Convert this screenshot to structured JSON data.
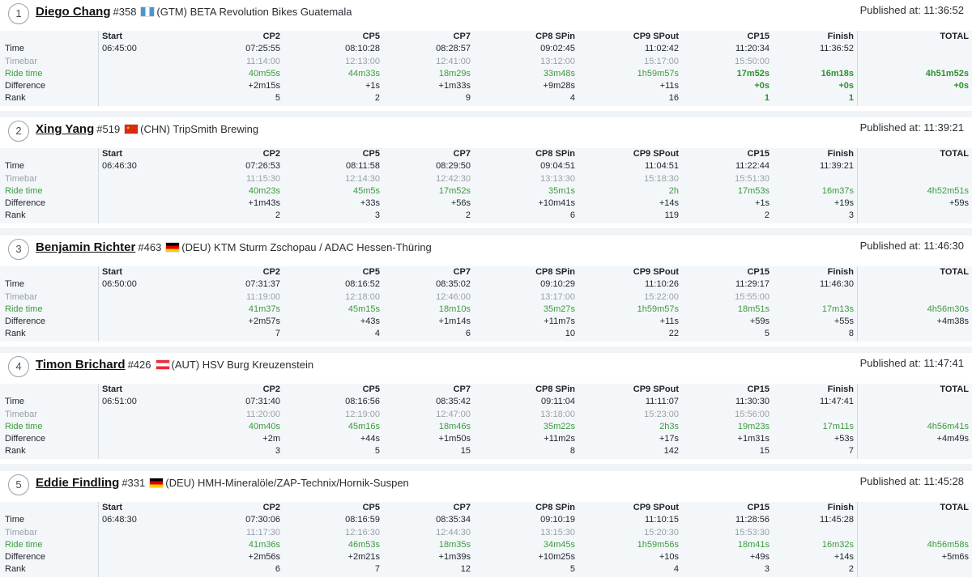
{
  "row_labels": [
    "Time",
    "Timebar",
    "Ride time",
    "Difference",
    "Rank"
  ],
  "checkpoints": [
    "Start",
    "CP2",
    "CP5",
    "CP7",
    "CP8 SPin",
    "CP9 SPout",
    "CP15",
    "Finish",
    "TOTAL"
  ],
  "riders": [
    {
      "position": "1",
      "name": "Diego Chang",
      "number": "#358",
      "country_code": "GTM",
      "country": "(GTM)",
      "team": "BETA Revolution Bikes Guatemala",
      "published": "Published at: 11:36:52",
      "start_time": "06:45:00",
      "time": [
        "07:25:55",
        "08:10:28",
        "08:28:57",
        "09:02:45",
        "11:02:42",
        "11:20:34",
        "11:36:52",
        ""
      ],
      "timebar": [
        "11:14:00",
        "12:13:00",
        "12:41:00",
        "13:12:00",
        "15:17:00",
        "15:50:00",
        "",
        ""
      ],
      "ride_time": [
        "40m55s",
        "44m33s",
        "18m29s",
        "33m48s",
        "1h59m57s",
        "17m52s",
        "16m18s",
        "4h51m52s"
      ],
      "difference": [
        "+2m15s",
        "+1s",
        "+1m33s",
        "+9m28s",
        "+11s",
        "+0s",
        "+0s",
        "+0s"
      ],
      "rank": [
        "5",
        "2",
        "9",
        "4",
        "16",
        "1",
        "1",
        ""
      ],
      "best_ride": [
        false,
        false,
        false,
        false,
        false,
        true,
        true,
        true
      ],
      "best_diff": [
        false,
        false,
        false,
        false,
        false,
        true,
        true,
        true
      ],
      "best_rank": [
        false,
        false,
        false,
        false,
        false,
        true,
        true,
        false
      ]
    },
    {
      "position": "2",
      "name": "Xing Yang",
      "number": "#519",
      "country_code": "CHN",
      "country": "(CHN)",
      "team": "TripSmith Brewing",
      "published": "Published at: 11:39:21",
      "start_time": "06:46:30",
      "time": [
        "07:26:53",
        "08:11:58",
        "08:29:50",
        "09:04:51",
        "11:04:51",
        "11:22:44",
        "11:39:21",
        ""
      ],
      "timebar": [
        "11:15:30",
        "12:14:30",
        "12:42:30",
        "13:13:30",
        "15:18:30",
        "15:51:30",
        "",
        ""
      ],
      "ride_time": [
        "40m23s",
        "45m5s",
        "17m52s",
        "35m1s",
        "2h",
        "17m53s",
        "16m37s",
        "4h52m51s"
      ],
      "difference": [
        "+1m43s",
        "+33s",
        "+56s",
        "+10m41s",
        "+14s",
        "+1s",
        "+19s",
        "+59s"
      ],
      "rank": [
        "2",
        "3",
        "2",
        "6",
        "119",
        "2",
        "3",
        ""
      ],
      "best_ride": [
        false,
        false,
        false,
        false,
        false,
        false,
        false,
        false
      ],
      "best_diff": [
        false,
        false,
        false,
        false,
        false,
        false,
        false,
        false
      ],
      "best_rank": [
        false,
        false,
        false,
        false,
        false,
        false,
        false,
        false
      ]
    },
    {
      "position": "3",
      "name": "Benjamin Richter",
      "number": "#463",
      "country_code": "DEU",
      "country": "(DEU)",
      "team": "KTM Sturm Zschopau / ADAC Hessen-Thüring",
      "published": "Published at: 11:46:30",
      "start_time": "06:50:00",
      "time": [
        "07:31:37",
        "08:16:52",
        "08:35:02",
        "09:10:29",
        "11:10:26",
        "11:29:17",
        "11:46:30",
        ""
      ],
      "timebar": [
        "11:19:00",
        "12:18:00",
        "12:46:00",
        "13:17:00",
        "15:22:00",
        "15:55:00",
        "",
        ""
      ],
      "ride_time": [
        "41m37s",
        "45m15s",
        "18m10s",
        "35m27s",
        "1h59m57s",
        "18m51s",
        "17m13s",
        "4h56m30s"
      ],
      "difference": [
        "+2m57s",
        "+43s",
        "+1m14s",
        "+11m7s",
        "+11s",
        "+59s",
        "+55s",
        "+4m38s"
      ],
      "rank": [
        "7",
        "4",
        "6",
        "10",
        "22",
        "5",
        "8",
        ""
      ],
      "best_ride": [
        false,
        false,
        false,
        false,
        false,
        false,
        false,
        false
      ],
      "best_diff": [
        false,
        false,
        false,
        false,
        false,
        false,
        false,
        false
      ],
      "best_rank": [
        false,
        false,
        false,
        false,
        false,
        false,
        false,
        false
      ]
    },
    {
      "position": "4",
      "name": "Timon Brichard",
      "number": "#426",
      "country_code": "AUT",
      "country": "(AUT)",
      "team": "HSV Burg Kreuzenstein",
      "published": "Published at: 11:47:41",
      "start_time": "06:51:00",
      "time": [
        "07:31:40",
        "08:16:56",
        "08:35:42",
        "09:11:04",
        "11:11:07",
        "11:30:30",
        "11:47:41",
        ""
      ],
      "timebar": [
        "11:20:00",
        "12:19:00",
        "12:47:00",
        "13:18:00",
        "15:23:00",
        "15:56:00",
        "",
        ""
      ],
      "ride_time": [
        "40m40s",
        "45m16s",
        "18m46s",
        "35m22s",
        "2h3s",
        "19m23s",
        "17m11s",
        "4h56m41s"
      ],
      "difference": [
        "+2m",
        "+44s",
        "+1m50s",
        "+11m2s",
        "+17s",
        "+1m31s",
        "+53s",
        "+4m49s"
      ],
      "rank": [
        "3",
        "5",
        "15",
        "8",
        "142",
        "15",
        "7",
        ""
      ],
      "best_ride": [
        false,
        false,
        false,
        false,
        false,
        false,
        false,
        false
      ],
      "best_diff": [
        false,
        false,
        false,
        false,
        false,
        false,
        false,
        false
      ],
      "best_rank": [
        false,
        false,
        false,
        false,
        false,
        false,
        false,
        false
      ]
    },
    {
      "position": "5",
      "name": "Eddie Findling",
      "number": "#331",
      "country_code": "DEU",
      "country": "(DEU)",
      "team": "HMH-Mineralöle/ZAP-Technix/Hornik-Suspen",
      "published": "Published at: 11:45:28",
      "start_time": "06:48:30",
      "time": [
        "07:30:06",
        "08:16:59",
        "08:35:34",
        "09:10:19",
        "11:10:15",
        "11:28:56",
        "11:45:28",
        ""
      ],
      "timebar": [
        "11:17:30",
        "12:16:30",
        "12:44:30",
        "13:15:30",
        "15:20:30",
        "15:53:30",
        "",
        ""
      ],
      "ride_time": [
        "41m36s",
        "46m53s",
        "18m35s",
        "34m45s",
        "1h59m56s",
        "18m41s",
        "16m32s",
        "4h56m58s"
      ],
      "difference": [
        "+2m56s",
        "+2m21s",
        "+1m39s",
        "+10m25s",
        "+10s",
        "+49s",
        "+14s",
        "+5m6s"
      ],
      "rank": [
        "6",
        "7",
        "12",
        "5",
        "4",
        "3",
        "2",
        ""
      ],
      "best_ride": [
        false,
        false,
        false,
        false,
        false,
        false,
        false,
        false
      ],
      "best_diff": [
        false,
        false,
        false,
        false,
        false,
        false,
        false,
        false
      ],
      "best_rank": [
        false,
        false,
        false,
        false,
        false,
        false,
        false,
        false
      ]
    }
  ]
}
